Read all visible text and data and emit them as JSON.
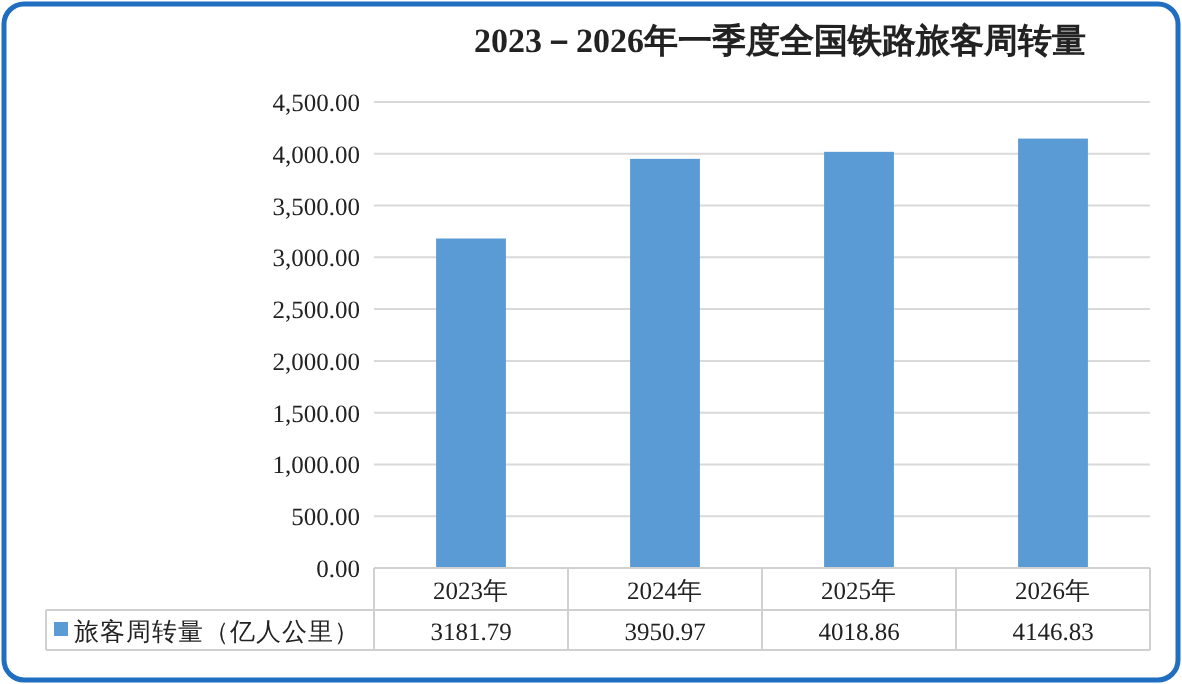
{
  "chart_data": {
    "type": "bar",
    "title": "2023－2026年一季度全国铁路旅客周转量",
    "categories": [
      "2023年",
      "2024年",
      "2025年",
      "2026年"
    ],
    "series": [
      {
        "name": "旅客周转量（亿人公里）",
        "color": "#5b9bd5",
        "values": [
          3181.79,
          3950.97,
          4018.86,
          4146.83
        ]
      }
    ],
    "ylim": [
      0,
      4500
    ],
    "yticks": [
      {
        "value": 0,
        "label": "0.00"
      },
      {
        "value": 500,
        "label": "500.00"
      },
      {
        "value": 1000,
        "label": "1,000.00"
      },
      {
        "value": 1500,
        "label": "1,500.00"
      },
      {
        "value": 2000,
        "label": "2,000.00"
      },
      {
        "value": 2500,
        "label": "2,500.00"
      },
      {
        "value": 3000,
        "label": "3,000.00"
      },
      {
        "value": 3500,
        "label": "3,500.00"
      },
      {
        "value": 4000,
        "label": "4,000.00"
      },
      {
        "value": 4500,
        "label": "4,500.00"
      }
    ],
    "grid": "y",
    "legend": "bottom",
    "data_labels": true
  }
}
